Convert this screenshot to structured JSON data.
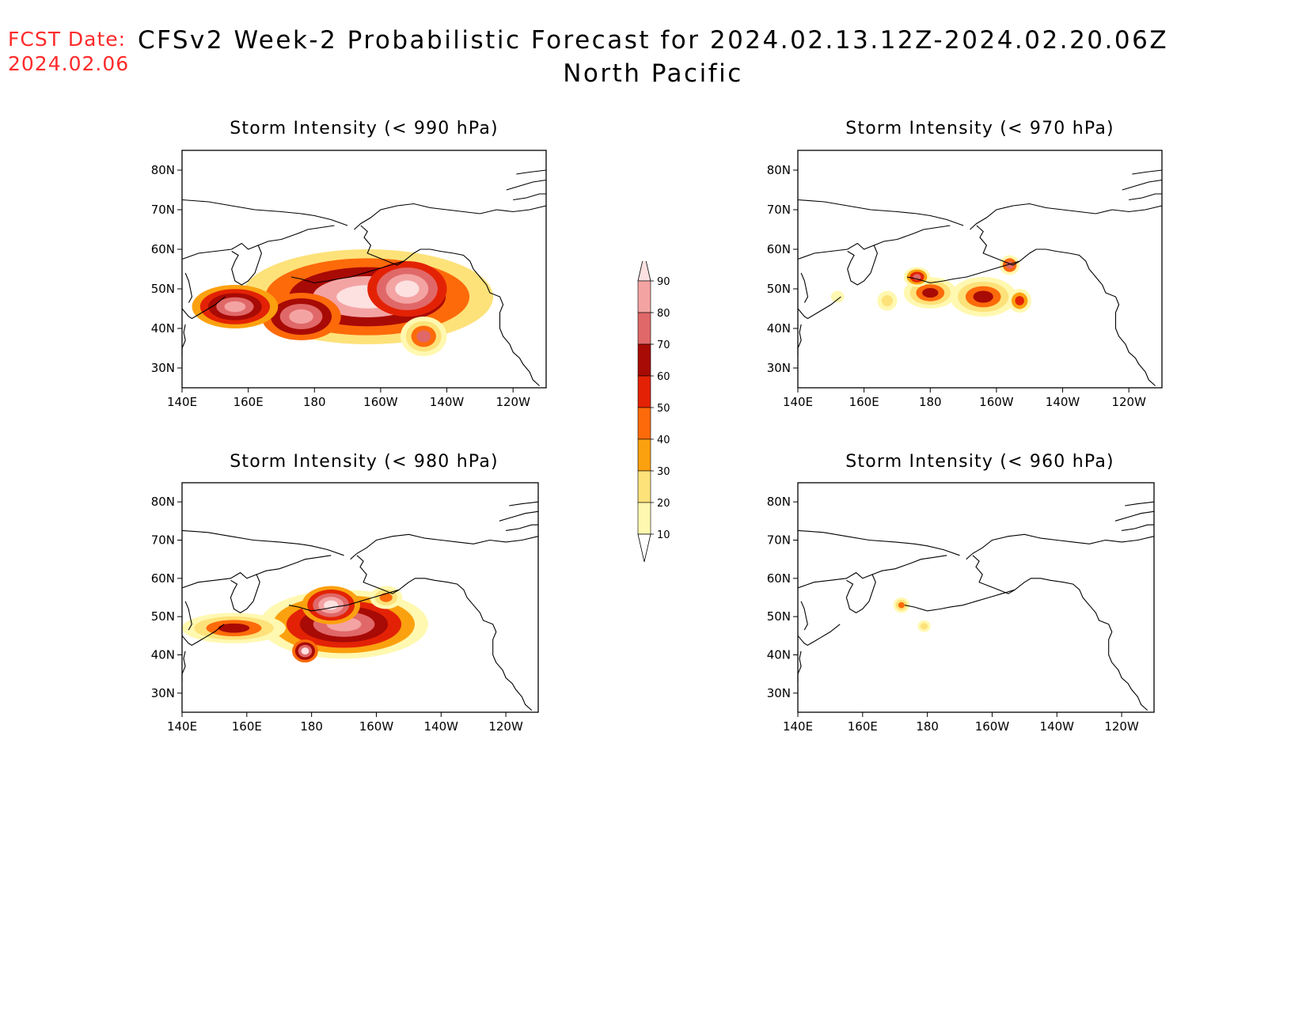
{
  "header": {
    "fcst_label": "FCST Date:",
    "fcst_date": "2024.02.06",
    "title": "CFSv2 Week-2 Probabilistic Forecast for 2024.02.13.12Z-2024.02.20.06Z",
    "subtitle": "North Pacific"
  },
  "axes": {
    "lon_ticks": [
      "140E",
      "160E",
      "180",
      "160W",
      "140W",
      "120W"
    ],
    "lat_ticks": [
      "80N",
      "70N",
      "60N",
      "50N",
      "40N",
      "30N"
    ]
  },
  "panels": [
    {
      "id": "p990",
      "title": "Storm Intensity (< 990 hPa)"
    },
    {
      "id": "p970",
      "title": "Storm Intensity (< 970 hPa)"
    },
    {
      "id": "p980",
      "title": "Storm Intensity (< 980 hPa)"
    },
    {
      "id": "p960",
      "title": "Storm Intensity (< 960 hPa)"
    }
  ],
  "colorbar": {
    "levels": [
      10,
      20,
      30,
      40,
      50,
      60,
      70,
      80,
      90
    ],
    "labels": [
      "10",
      "20",
      "30",
      "40",
      "50",
      "60",
      "70",
      "80",
      "90"
    ],
    "colors": [
      "#fff8b0",
      "#fde27a",
      "#fba10f",
      "#fd6a0a",
      "#e32205",
      "#a80a05",
      "#e06868",
      "#f4a3a3",
      "#fde1e1"
    ]
  }
}
